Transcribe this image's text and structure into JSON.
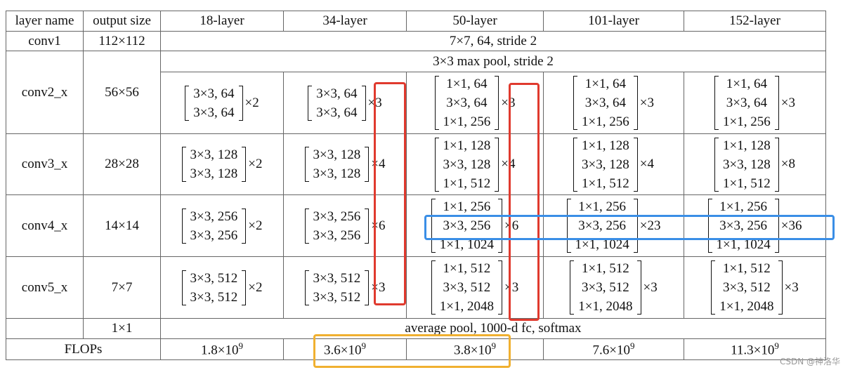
{
  "table": {
    "header": [
      "layer name",
      "output size",
      "18-layer",
      "34-layer",
      "50-layer",
      "101-layer",
      "152-layer"
    ],
    "rows": [
      {
        "name": "conv1",
        "size": "112×112",
        "spec": "7×7, 64, stride 2"
      },
      {
        "name": "conv2_x",
        "size": "56×56",
        "pool": "3×3 max pool, stride 2",
        "blocks": [
          {
            "lines": [
              "3×3, 64",
              "3×3, 64"
            ],
            "times": "×2"
          },
          {
            "lines": [
              "3×3, 64",
              "3×3, 64"
            ],
            "times": "×3"
          },
          {
            "lines": [
              "1×1, 64",
              "3×3, 64",
              "1×1, 256"
            ],
            "times": "×3"
          },
          {
            "lines": [
              "1×1, 64",
              "3×3, 64",
              "1×1, 256"
            ],
            "times": "×3"
          },
          {
            "lines": [
              "1×1, 64",
              "3×3, 64",
              "1×1, 256"
            ],
            "times": "×3"
          }
        ]
      },
      {
        "name": "conv3_x",
        "size": "28×28",
        "blocks": [
          {
            "lines": [
              "3×3, 128",
              "3×3, 128"
            ],
            "times": "×2"
          },
          {
            "lines": [
              "3×3, 128",
              "3×3, 128"
            ],
            "times": "×4"
          },
          {
            "lines": [
              "1×1, 128",
              "3×3, 128",
              "1×1, 512"
            ],
            "times": "×4"
          },
          {
            "lines": [
              "1×1, 128",
              "3×3, 128",
              "1×1, 512"
            ],
            "times": "×4"
          },
          {
            "lines": [
              "1×1, 128",
              "3×3, 128",
              "1×1, 512"
            ],
            "times": "×8"
          }
        ]
      },
      {
        "name": "conv4_x",
        "size": "14×14",
        "blocks": [
          {
            "lines": [
              "3×3, 256",
              "3×3, 256"
            ],
            "times": "×2"
          },
          {
            "lines": [
              "3×3, 256",
              "3×3, 256"
            ],
            "times": "×6"
          },
          {
            "lines": [
              "1×1, 256",
              "3×3, 256",
              "1×1, 1024"
            ],
            "times": "×6"
          },
          {
            "lines": [
              "1×1, 256",
              "3×3, 256",
              "1×1, 1024"
            ],
            "times": "×23"
          },
          {
            "lines": [
              "1×1, 256",
              "3×3, 256",
              "1×1, 1024"
            ],
            "times": "×36"
          }
        ]
      },
      {
        "name": "conv5_x",
        "size": "7×7",
        "blocks": [
          {
            "lines": [
              "3×3, 512",
              "3×3, 512"
            ],
            "times": "×2"
          },
          {
            "lines": [
              "3×3, 512",
              "3×3, 512"
            ],
            "times": "×3"
          },
          {
            "lines": [
              "1×1, 512",
              "3×3, 512",
              "1×1, 2048"
            ],
            "times": "×3"
          },
          {
            "lines": [
              "1×1, 512",
              "3×3, 512",
              "1×1, 2048"
            ],
            "times": "×3"
          },
          {
            "lines": [
              "1×1, 512",
              "3×3, 512",
              "1×1, 2048"
            ],
            "times": "×3"
          }
        ]
      },
      {
        "size": "1×1",
        "spec": "average pool, 1000-d fc, softmax"
      },
      {
        "name": "FLOPs",
        "flops": [
          {
            "base": "1.8×10",
            "exp": "9"
          },
          {
            "base": "3.6×10",
            "exp": "9"
          },
          {
            "base": "3.8×10",
            "exp": "9"
          },
          {
            "base": "7.6×10",
            "exp": "9"
          },
          {
            "base": "11.3×10",
            "exp": "9"
          }
        ]
      }
    ],
    "watermark": "CSDN @神洛华"
  }
}
